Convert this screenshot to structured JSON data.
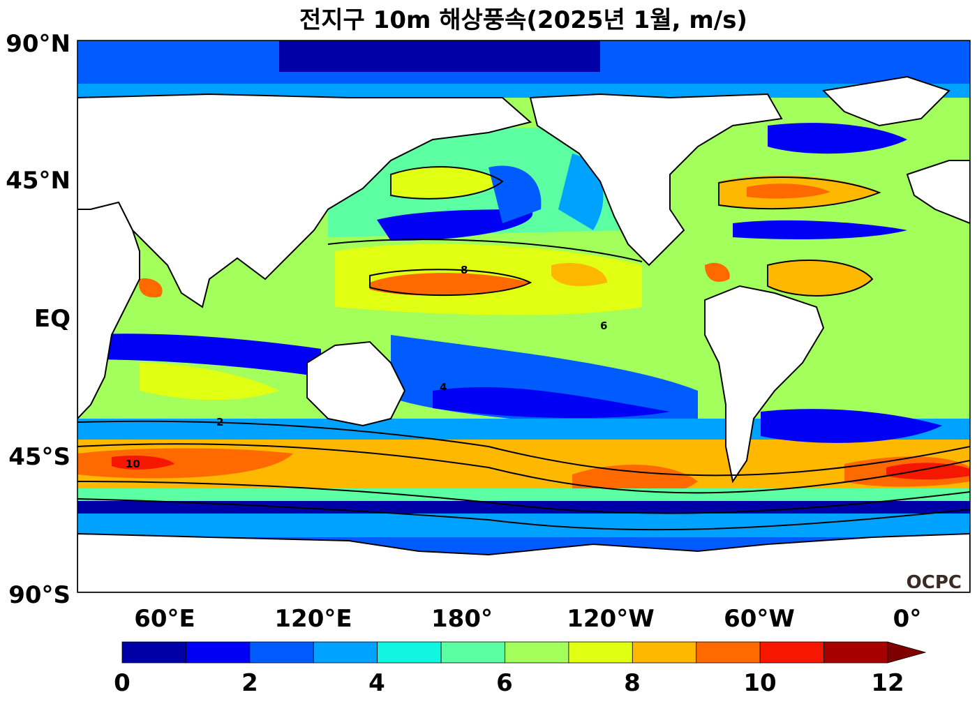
{
  "chart_data": {
    "type": "heatmap",
    "title": "전지구 10m 해상풍속(2025년 1월, m/s)",
    "y_ticks": [
      "90°N",
      "45°N",
      "EQ",
      "45°S",
      "90°S"
    ],
    "x_ticks": [
      "60°E",
      "120°E",
      "180°",
      "120°W",
      "60°W",
      "0°"
    ],
    "colorbar": {
      "ticks": [
        "0",
        "2",
        "4",
        "6",
        "8",
        "10",
        "12"
      ],
      "range": [
        0,
        12
      ],
      "step": 1,
      "extend": "max",
      "colors": [
        "#0000a6",
        "#0000f5",
        "#005cff",
        "#00a2ff",
        "#12f5e1",
        "#5cffa2",
        "#a2ff5c",
        "#e1ff12",
        "#ffb800",
        "#ff6a00",
        "#f51700",
        "#a60000"
      ],
      "extend_color": "#800000"
    },
    "contour_levels": [
      "2",
      "4",
      "6",
      "8",
      "10"
    ],
    "land_color": "#ffffff",
    "logo": "OCPC"
  }
}
